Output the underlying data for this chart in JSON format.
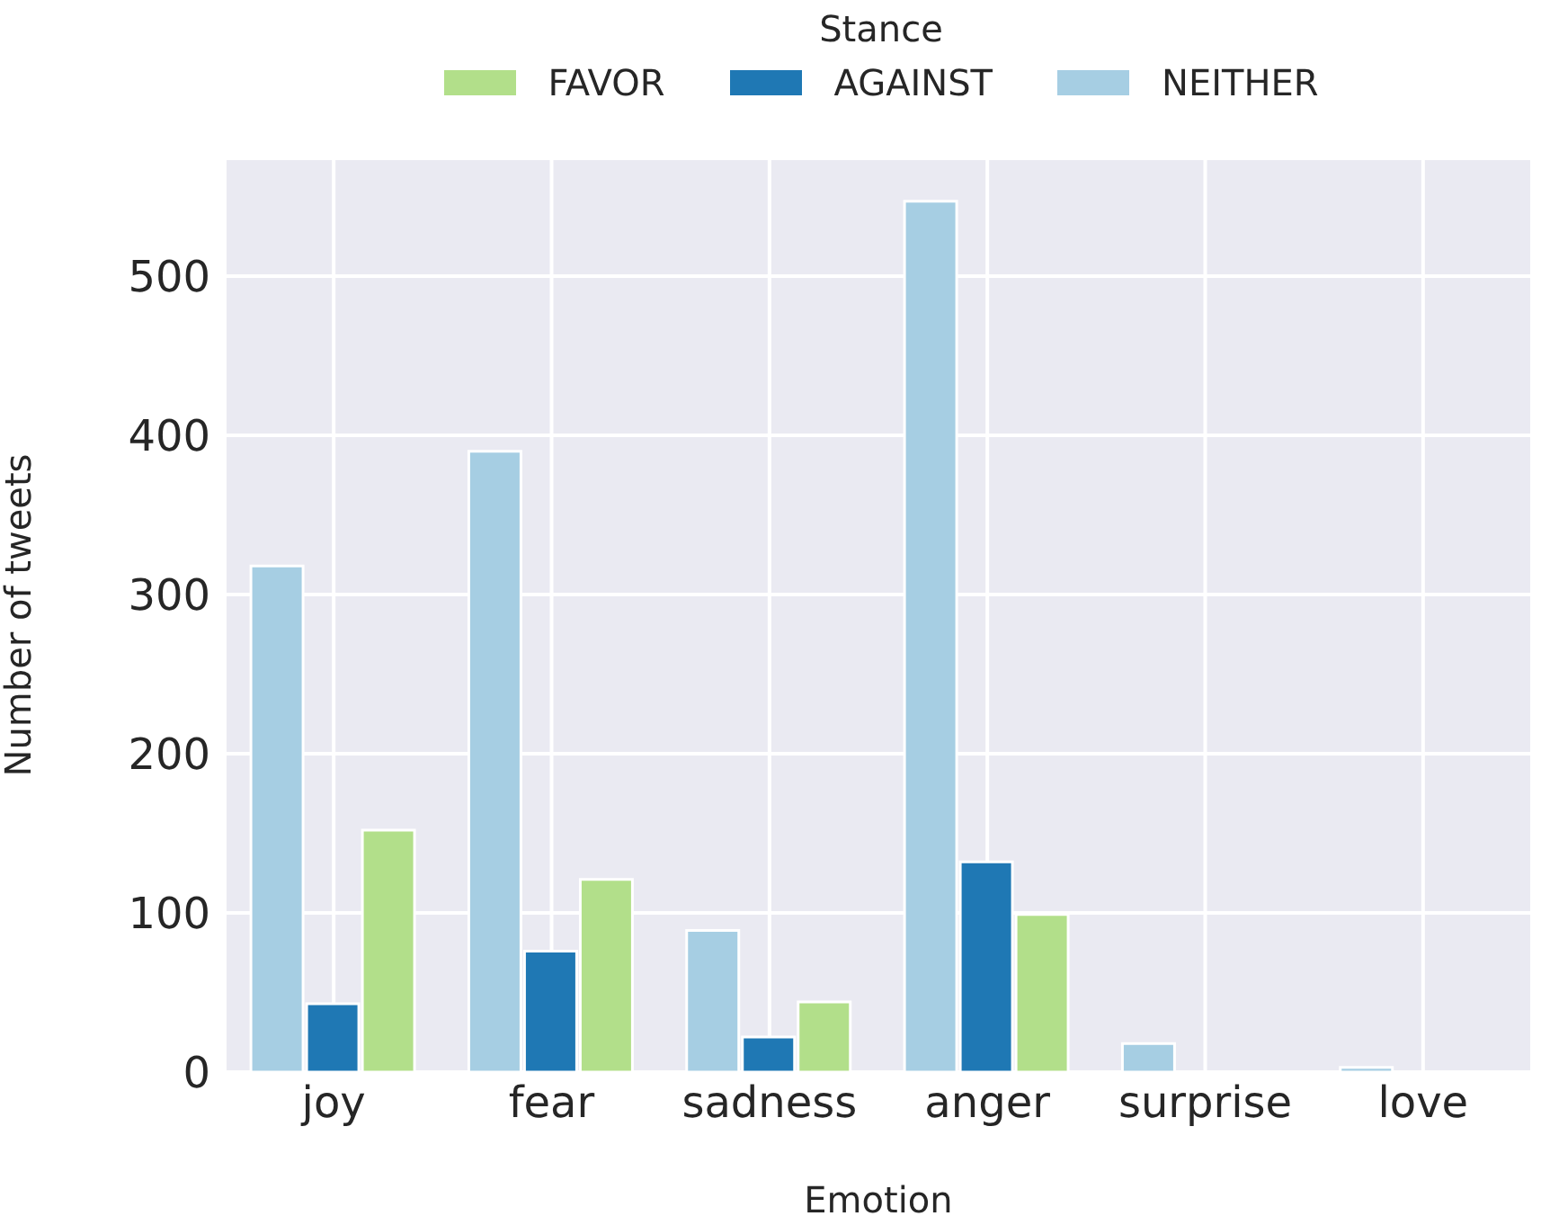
{
  "chart_data": {
    "type": "bar",
    "xlabel": "Emotion",
    "ylabel": "Number of tweets",
    "legend_title": "Stance",
    "categories": [
      "joy",
      "fear",
      "sadness",
      "anger",
      "surprise",
      "love"
    ],
    "series": [
      {
        "name": "FAVOR",
        "color": "#b2df8a",
        "values": [
          152,
          121,
          44,
          99,
          null,
          0
        ]
      },
      {
        "name": "AGAINST",
        "color": "#1f78b4",
        "values": [
          43,
          76,
          22,
          132,
          null,
          0
        ]
      },
      {
        "name": "NEITHER",
        "color": "#a6cee3",
        "values": [
          318,
          390,
          89,
          547,
          18,
          3
        ]
      }
    ],
    "ylim": [
      0,
      574
    ],
    "yticks": [
      0,
      100,
      200,
      300,
      400,
      500
    ],
    "grid": true,
    "legend": "top"
  }
}
